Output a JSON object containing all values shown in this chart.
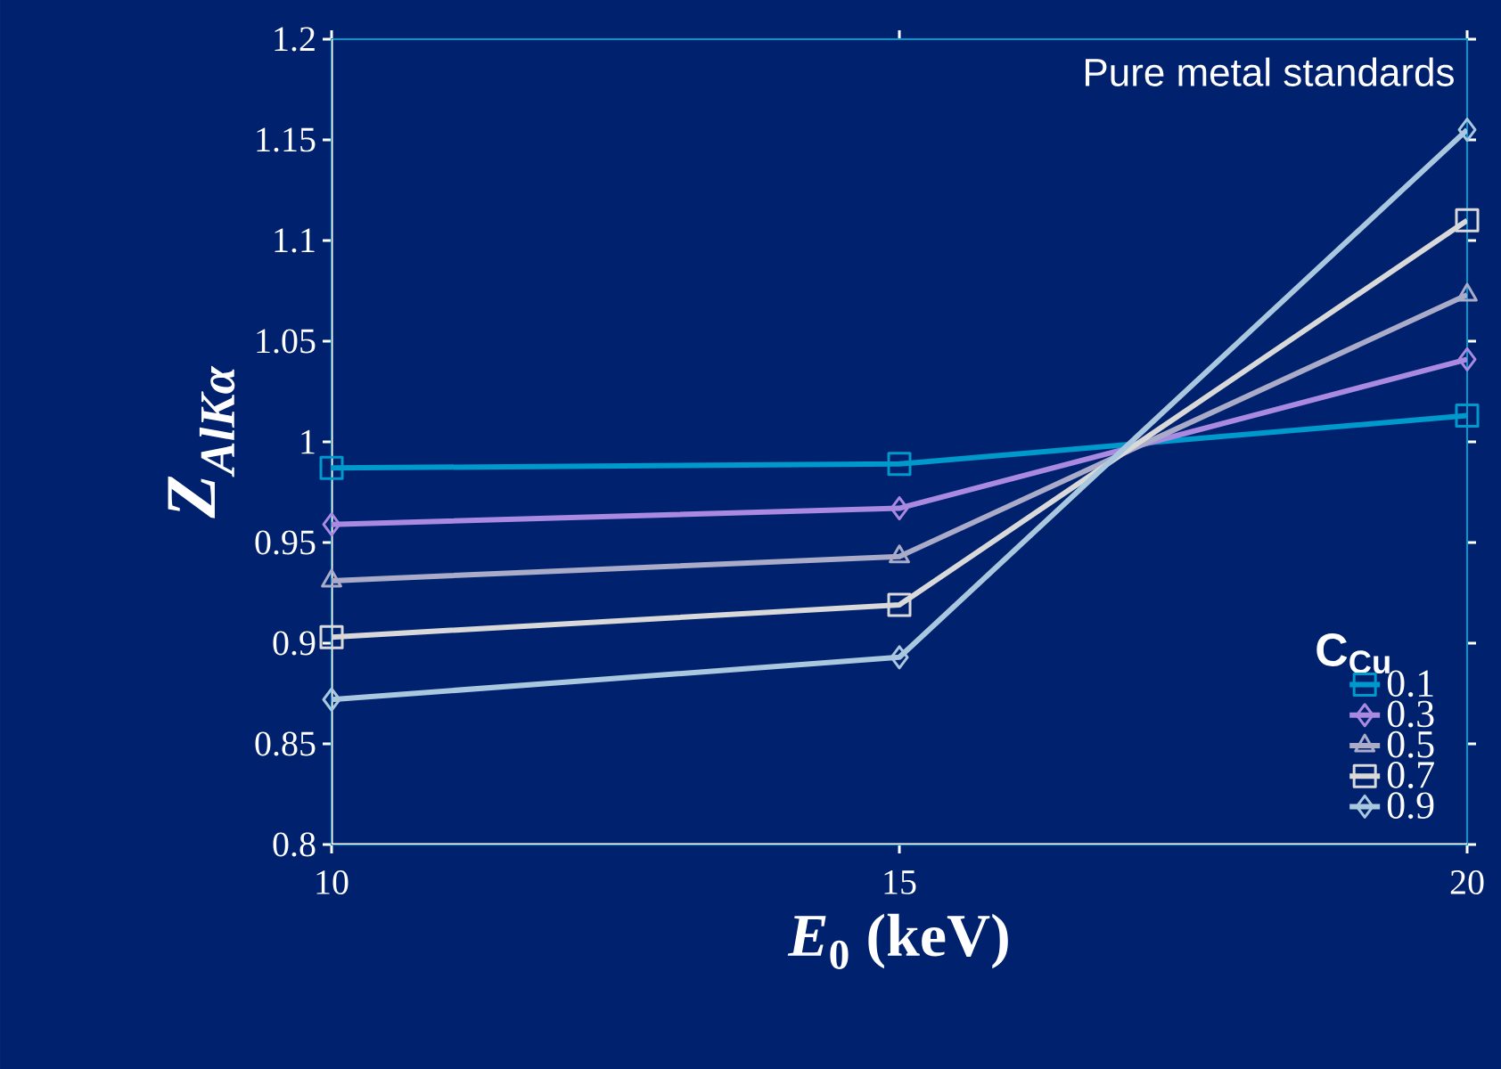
{
  "chart_data": {
    "type": "line",
    "xlabel": "*E*$_{0}$ (keV)",
    "ylabel": "Z$_{AlKα}$",
    "legend_title": "C$_{Cu}$",
    "annotations": [
      "Pure metal standards"
    ],
    "x": [
      10,
      15,
      20
    ],
    "series": [
      {
        "name": "0.1",
        "color": "#0099cc",
        "marker": "square",
        "values": [
          0.987,
          0.989,
          1.013
        ]
      },
      {
        "name": "0.3",
        "color": "#a98ae0",
        "marker": "diamond",
        "values": [
          0.959,
          0.967,
          1.041
        ]
      },
      {
        "name": "0.5",
        "color": "#a9abc9",
        "marker": "triangle",
        "values": [
          0.931,
          0.943,
          1.073
        ]
      },
      {
        "name": "0.7",
        "color": "#d9d9d9",
        "marker": "square",
        "values": [
          0.903,
          0.919,
          1.11
        ]
      },
      {
        "name": "0.9",
        "color": "#a9c8e0",
        "marker": "diamond",
        "values": [
          0.872,
          0.893,
          1.155
        ]
      }
    ],
    "xlim": [
      10,
      20
    ],
    "xticks": [
      10,
      15,
      20
    ],
    "ylim": [
      0.8,
      1.2
    ],
    "yticks": [
      0.8,
      0.85,
      0.9,
      0.95,
      1,
      1.05,
      1.1,
      1.15,
      1.2
    ],
    "legend": "bottom right",
    "line_style": "solid"
  }
}
